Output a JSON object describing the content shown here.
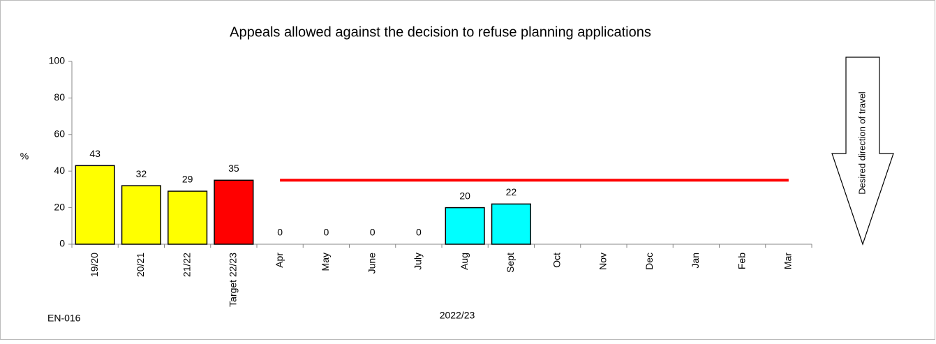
{
  "chart_data": {
    "type": "bar",
    "title": "Appeals allowed against the decision to refuse planning applications",
    "y_label": "%",
    "categories": [
      "19/20",
      "20/21",
      "21/22",
      "Target 22/23",
      "Apr",
      "May",
      "June",
      "July",
      "Aug",
      "Sept",
      "Oct",
      "Nov",
      "Dec",
      "Jan",
      "Feb",
      "Mar"
    ],
    "values": [
      43,
      32,
      29,
      35,
      0,
      0,
      0,
      0,
      20,
      22,
      null,
      null,
      null,
      null,
      null,
      null
    ],
    "colors": [
      "#ffff00",
      "#ffff00",
      "#ffff00",
      "#ff0000",
      "#00ffff",
      "#00ffff",
      "#00ffff",
      "#00ffff",
      "#00ffff",
      "#00ffff",
      "#00ffff",
      "#00ffff",
      "#00ffff",
      "#00ffff",
      "#00ffff",
      "#00ffff"
    ],
    "target_line": {
      "value": 35,
      "color": "#ff0000"
    },
    "ylim": [
      0,
      100
    ],
    "yticks": [
      0,
      20,
      40,
      60,
      80,
      100
    ],
    "grid": false,
    "annotations": {
      "code": "EN-016",
      "period": "2022/23",
      "arrow": "Desired direction of travel"
    }
  }
}
